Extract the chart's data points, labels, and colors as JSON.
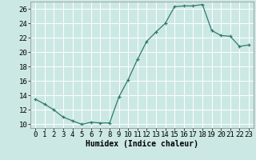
{
  "x": [
    0,
    1,
    2,
    3,
    4,
    5,
    6,
    7,
    8,
    9,
    10,
    11,
    12,
    13,
    14,
    15,
    16,
    17,
    18,
    19,
    20,
    21,
    22,
    23
  ],
  "y": [
    13.5,
    12.8,
    12.0,
    11.0,
    10.5,
    10.0,
    10.3,
    10.2,
    10.2,
    13.8,
    16.2,
    19.0,
    21.5,
    22.8,
    24.0,
    26.3,
    26.4,
    26.4,
    26.6,
    23.0,
    22.3,
    22.2,
    20.8,
    21.0
  ],
  "line_color": "#2e7b6e",
  "marker": "+",
  "marker_size": 3,
  "bg_color": "#cce8e4",
  "grid_color": "#ffffff",
  "xlabel": "Humidex (Indice chaleur)",
  "ylabel": "",
  "title": "",
  "xlim": [
    -0.5,
    23.5
  ],
  "ylim": [
    9.5,
    27
  ],
  "yticks": [
    10,
    12,
    14,
    16,
    18,
    20,
    22,
    24,
    26
  ],
  "xticks": [
    0,
    1,
    2,
    3,
    4,
    5,
    6,
    7,
    8,
    9,
    10,
    11,
    12,
    13,
    14,
    15,
    16,
    17,
    18,
    19,
    20,
    21,
    22,
    23
  ],
  "xlabel_fontsize": 7,
  "tick_fontsize": 6.5
}
